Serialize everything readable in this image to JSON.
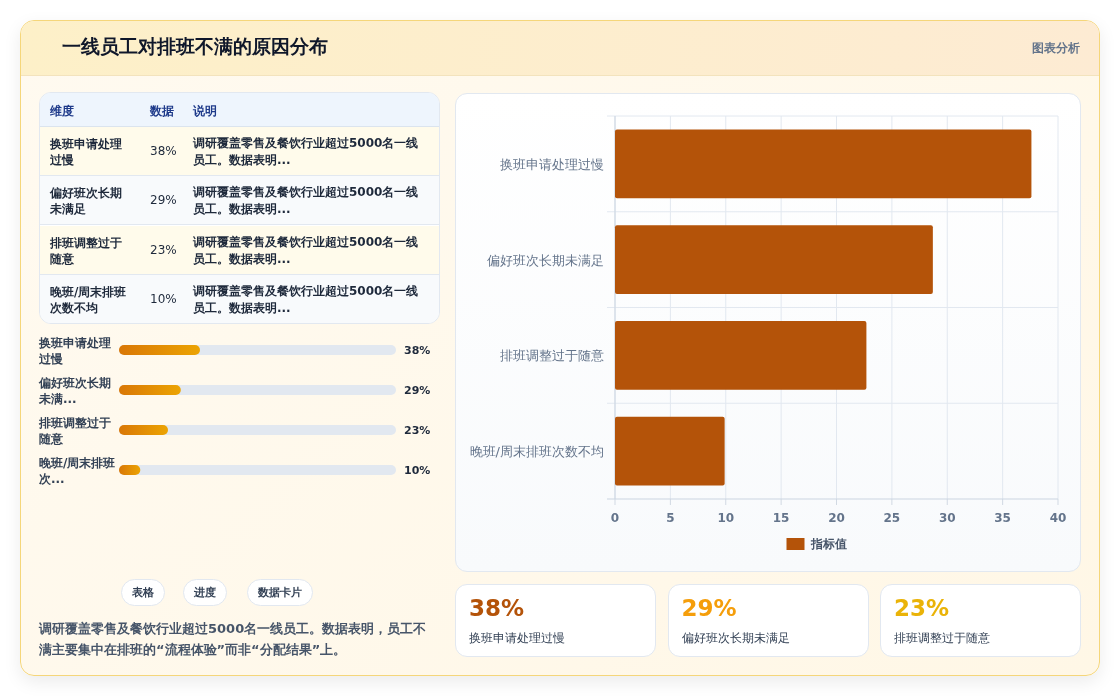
{
  "chart_data": [
    {
      "type": "other",
      "title": "一线员工对排班不满的原因分布",
      "annotations": [
        "图表分析"
      ]
    },
    {
      "type": "other",
      "annotations": [
        "维度",
        "数据",
        "说明",
        "调研覆盖零售及餐饮行业超过5000名一线员工。数据表明...",
        "调研覆盖零售及餐饮行业超过5000名一线员工。数据表明...",
        "调研覆盖零售及餐饮行业超过5000名一线员工。数据表明...",
        "调研覆盖零售及餐饮行业超过5000名一线员工。数据表明..."
      ],
      "categories": [
        "换班申请处理过慢",
        "偏好班次长期未满足",
        "排班调整过于随意",
        "晚班/周末排班次数不均"
      ],
      "value_labels": [
        "38%",
        "29%",
        "23%",
        "10%"
      ]
    },
    {
      "type": "bar",
      "orientation": "horizontal",
      "categories": [
        "换班申请处理过慢",
        "偏好班次长期未满...",
        "排班调整过于随意",
        "晚班/周末排班次..."
      ],
      "values": [
        38,
        29,
        23,
        10
      ],
      "value_labels": [
        "38%",
        "29%",
        "23%",
        "10%"
      ],
      "xlim": [
        0,
        130
      ],
      "color": "#d97706",
      "tick_labels": "y"
    },
    {
      "type": "other",
      "annotations": [
        "表格",
        "进度",
        "数据卡片",
        "调研覆盖零售及餐饮行业超过5000名一线员工。数据表明，员工不满主要集中在排班的“流程体验”而非“分配结果”上。"
      ]
    },
    {
      "type": "bar",
      "orientation": "horizontal",
      "categories": [
        "换班申请处理过慢",
        "偏好班次长期未满足",
        "排班调整过于随意",
        "晚班/周末排班次数不均"
      ],
      "series": [
        {
          "name": "指标值",
          "color": "#b45309",
          "values": [
            37.6,
            28.7,
            22.7,
            9.9
          ]
        }
      ],
      "xlim": [
        0,
        40
      ],
      "xticks": [
        0,
        5,
        10,
        15,
        20,
        25,
        30,
        35,
        40
      ],
      "grid": true,
      "legend": "bottom"
    },
    {
      "type": "other",
      "categories": [
        "换班申请处理过慢",
        "偏好班次长期未满足",
        "排班调整过于随意"
      ],
      "value_labels": [
        "38%",
        "29%",
        "23%"
      ]
    }
  ]
}
